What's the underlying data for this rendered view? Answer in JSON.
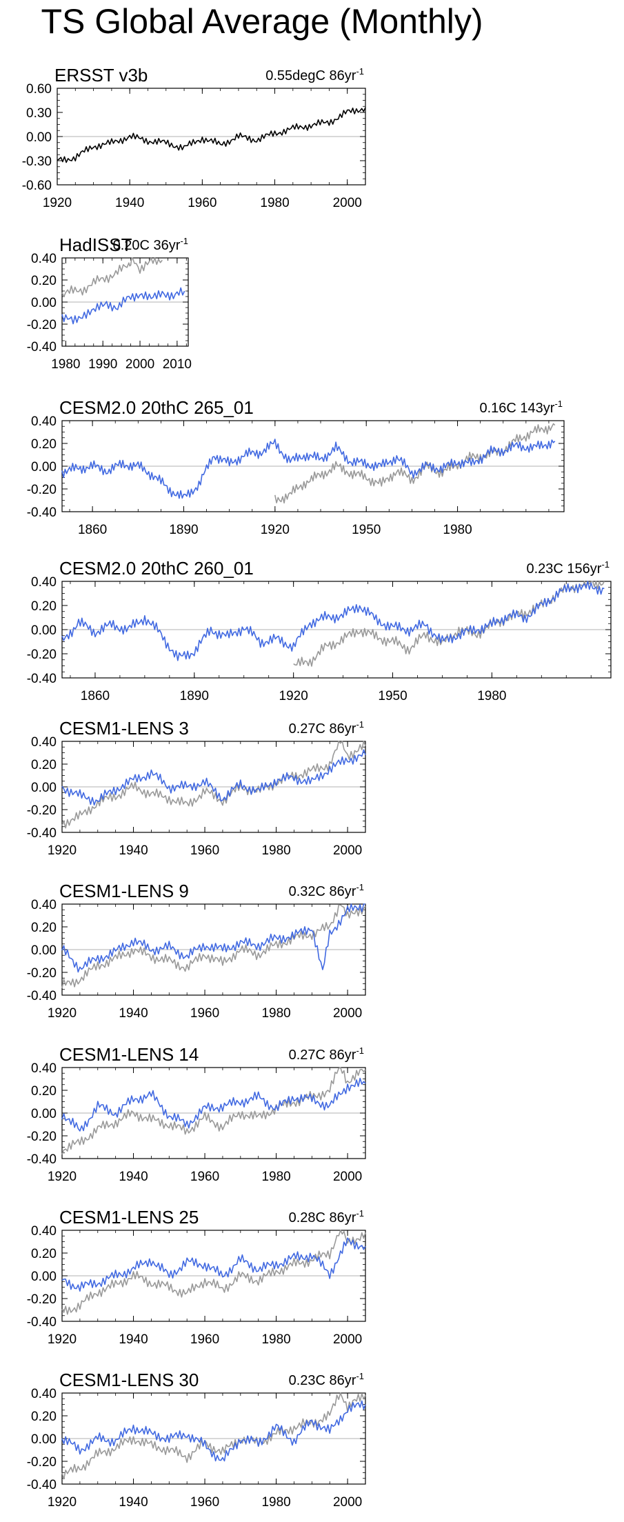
{
  "page_title": "TS Global Average (Monthly)",
  "colors": {
    "observed": "#000000",
    "reference": "#999999",
    "model": "#4169E1",
    "zero_line": "#b0b0b0"
  },
  "chart_data": [
    {
      "type": "line",
      "title": "ERSST v3b",
      "trend": "0.55degC 86yr",
      "trend_sup": "-1",
      "x_ticks": [
        1920,
        1940,
        1960,
        1980,
        2000
      ],
      "y_ticks": [
        "0.60",
        "0.30",
        "0.00",
        "-0.30",
        "-0.60"
      ],
      "xlim": [
        1920,
        2005
      ],
      "ylim": [
        -0.6,
        0.6
      ],
      "series": [
        {
          "color": "#000000",
          "x": [
            1920,
            1925,
            1930,
            1935,
            1940,
            1945,
            1950,
            1955,
            1960,
            1965,
            1970,
            1975,
            1980,
            1985,
            1990,
            1995,
            2000,
            2005
          ],
          "y": [
            -0.3,
            -0.26,
            -0.12,
            -0.08,
            0.0,
            -0.05,
            -0.08,
            -0.14,
            -0.02,
            -0.1,
            0.0,
            -0.04,
            0.04,
            0.1,
            0.14,
            0.18,
            0.3,
            0.36
          ]
        }
      ]
    },
    {
      "type": "line",
      "title": "HadISST",
      "trend": "0.20C 36yr",
      "trend_sup": "-1",
      "x_ticks": [
        1980,
        1990,
        2000,
        2010
      ],
      "y_ticks": [
        "0.40",
        "0.20",
        "0.00",
        "-0.20",
        "-0.40"
      ],
      "xlim": [
        1979,
        2013
      ],
      "ylim": [
        -0.4,
        0.4
      ],
      "series": [
        {
          "color": "#999999",
          "x": [
            1979,
            1982,
            1985,
            1988,
            1991,
            1994,
            1997,
            1998,
            2000,
            2003,
            2006
          ],
          "y": [
            0.06,
            0.1,
            0.12,
            0.18,
            0.22,
            0.28,
            0.32,
            0.42,
            0.3,
            0.36,
            0.38
          ]
        },
        {
          "color": "#4169E1",
          "x": [
            1979,
            1982,
            1985,
            1988,
            1991,
            1994,
            1997,
            2000,
            2003,
            2006,
            2009,
            2012
          ],
          "y": [
            -0.14,
            -0.18,
            -0.1,
            -0.08,
            0.0,
            -0.06,
            0.04,
            0.08,
            0.02,
            0.1,
            0.04,
            0.1
          ]
        }
      ]
    },
    {
      "type": "line",
      "title": "CESM2.0 20thC 265_01",
      "trend": "0.16C 143yr",
      "trend_sup": "-1",
      "x_ticks": [
        1860,
        1890,
        1920,
        1950,
        1980
      ],
      "y_ticks": [
        "0.40",
        "0.20",
        "0.00",
        "-0.20",
        "-0.40"
      ],
      "xlim": [
        1850,
        2015
      ],
      "ylim": [
        -0.4,
        0.4
      ],
      "series": [
        {
          "color": "#999999",
          "x": [
            1920,
            1925,
            1930,
            1935,
            1940,
            1945,
            1950,
            1955,
            1960,
            1965,
            1970,
            1975,
            1980,
            1985,
            1990,
            1995,
            2000,
            2005,
            2012
          ],
          "y": [
            -0.3,
            -0.25,
            -0.14,
            -0.08,
            0.0,
            -0.06,
            -0.1,
            -0.16,
            -0.04,
            -0.12,
            0.0,
            -0.06,
            0.02,
            0.08,
            0.1,
            0.14,
            0.24,
            0.3,
            0.36
          ]
        },
        {
          "color": "#4169E1",
          "x": [
            1850,
            1855,
            1860,
            1865,
            1870,
            1875,
            1880,
            1885,
            1890,
            1895,
            1900,
            1905,
            1910,
            1915,
            1920,
            1925,
            1930,
            1935,
            1940,
            1945,
            1950,
            1955,
            1960,
            1965,
            1970,
            1975,
            1980,
            1985,
            1990,
            1995,
            2000,
            2005,
            2012
          ],
          "y": [
            -0.05,
            -0.02,
            0.0,
            -0.04,
            0.02,
            0.0,
            -0.08,
            -0.2,
            -0.28,
            -0.16,
            0.1,
            0.02,
            0.1,
            0.12,
            0.2,
            0.04,
            0.1,
            0.06,
            0.16,
            0.04,
            0.02,
            0.0,
            0.08,
            -0.06,
            0.0,
            -0.02,
            0.04,
            0.02,
            0.12,
            0.14,
            0.18,
            0.16,
            0.22
          ]
        }
      ]
    },
    {
      "type": "line",
      "title": "CESM2.0 20thC 260_01",
      "trend": "0.23C 156yr",
      "trend_sup": "-1",
      "x_ticks": [
        1860,
        1890,
        1920,
        1950,
        1980
      ],
      "y_ticks": [
        "0.40",
        "0.20",
        "0.00",
        "-0.20",
        "-0.40"
      ],
      "xlim": [
        1850,
        2016
      ],
      "ylim": [
        -0.4,
        0.4
      ],
      "series": [
        {
          "color": "#999999",
          "x": [
            1920,
            1925,
            1930,
            1935,
            1940,
            1945,
            1950,
            1955,
            1960,
            1965,
            1970,
            1975,
            1980,
            1985,
            1990,
            1995,
            2000,
            2005,
            2014
          ],
          "y": [
            -0.3,
            -0.26,
            -0.14,
            -0.08,
            0.0,
            -0.06,
            -0.1,
            -0.16,
            -0.04,
            -0.12,
            0.0,
            -0.04,
            0.04,
            0.1,
            0.14,
            0.2,
            0.3,
            0.36,
            0.4
          ]
        },
        {
          "color": "#4169E1",
          "x": [
            1850,
            1855,
            1860,
            1865,
            1870,
            1875,
            1880,
            1885,
            1890,
            1895,
            1900,
            1905,
            1910,
            1915,
            1920,
            1925,
            1930,
            1935,
            1940,
            1945,
            1950,
            1955,
            1960,
            1965,
            1970,
            1975,
            1980,
            1985,
            1990,
            1995,
            2000,
            2005,
            2014
          ],
          "y": [
            -0.1,
            0.06,
            -0.02,
            0.04,
            0.0,
            0.1,
            -0.04,
            -0.24,
            -0.18,
            0.0,
            -0.06,
            0.02,
            -0.1,
            -0.08,
            -0.14,
            0.06,
            0.1,
            0.12,
            0.2,
            0.08,
            0.02,
            0.0,
            0.04,
            -0.1,
            -0.04,
            0.0,
            0.04,
            0.12,
            0.1,
            0.2,
            0.3,
            0.36,
            0.34
          ]
        }
      ]
    },
    {
      "type": "line",
      "title": "CESM1-LENS 3",
      "trend": "0.27C 86yr",
      "trend_sup": "-1",
      "x_ticks": [
        1920,
        1940,
        1960,
        1980,
        2000
      ],
      "y_ticks": [
        "0.40",
        "0.20",
        "0.00",
        "-0.20",
        "-0.40"
      ],
      "xlim": [
        1920,
        2005
      ],
      "ylim": [
        -0.4,
        0.4
      ],
      "series": [
        {
          "color": "#999999",
          "x": [
            1920,
            1925,
            1930,
            1935,
            1940,
            1945,
            1950,
            1955,
            1960,
            1965,
            1970,
            1975,
            1980,
            1985,
            1990,
            1995,
            1998,
            2000,
            2005
          ],
          "y": [
            -0.32,
            -0.26,
            -0.14,
            -0.08,
            0.0,
            -0.06,
            -0.1,
            -0.16,
            -0.04,
            -0.12,
            0.0,
            -0.04,
            0.04,
            0.1,
            0.14,
            0.2,
            0.4,
            0.28,
            0.36
          ]
        },
        {
          "color": "#4169E1",
          "x": [
            1920,
            1925,
            1930,
            1935,
            1940,
            1945,
            1950,
            1955,
            1960,
            1965,
            1970,
            1975,
            1980,
            1985,
            1990,
            1995,
            2000,
            2005
          ],
          "y": [
            0.0,
            -0.08,
            -0.12,
            -0.02,
            0.06,
            0.12,
            0.0,
            0.0,
            0.04,
            -0.1,
            0.02,
            -0.04,
            0.06,
            0.08,
            0.04,
            0.16,
            0.24,
            0.28
          ]
        }
      ]
    },
    {
      "type": "line",
      "title": "CESM1-LENS 9",
      "trend": "0.32C 86yr",
      "trend_sup": "-1",
      "x_ticks": [
        1920,
        1940,
        1960,
        1980,
        2000
      ],
      "y_ticks": [
        "0.40",
        "0.20",
        "0.00",
        "-0.20",
        "-0.40"
      ],
      "xlim": [
        1920,
        2005
      ],
      "ylim": [
        -0.4,
        0.4
      ],
      "series": [
        {
          "color": "#999999",
          "x": [
            1920,
            1925,
            1930,
            1935,
            1940,
            1945,
            1950,
            1955,
            1960,
            1965,
            1970,
            1975,
            1980,
            1985,
            1990,
            1995,
            1998,
            2000,
            2005
          ],
          "y": [
            -0.32,
            -0.26,
            -0.14,
            -0.08,
            0.0,
            -0.06,
            -0.1,
            -0.16,
            -0.04,
            -0.12,
            0.0,
            -0.04,
            0.04,
            0.1,
            0.14,
            0.2,
            0.42,
            0.28,
            0.38
          ]
        },
        {
          "color": "#4169E1",
          "x": [
            1920,
            1925,
            1930,
            1935,
            1940,
            1945,
            1950,
            1955,
            1960,
            1965,
            1970,
            1975,
            1980,
            1985,
            1990,
            1993,
            1995,
            2000,
            2005
          ],
          "y": [
            0.0,
            -0.16,
            -0.08,
            -0.02,
            0.08,
            0.0,
            0.02,
            -0.06,
            0.04,
            0.0,
            0.06,
            0.04,
            0.1,
            0.12,
            0.2,
            -0.2,
            0.14,
            0.34,
            0.4
          ]
        }
      ]
    },
    {
      "type": "line",
      "title": "CESM1-LENS 14",
      "trend": "0.27C 86yr",
      "trend_sup": "-1",
      "x_ticks": [
        1920,
        1940,
        1960,
        1980,
        2000
      ],
      "y_ticks": [
        "0.40",
        "0.20",
        "0.00",
        "-0.20",
        "-0.40"
      ],
      "xlim": [
        1920,
        2005
      ],
      "ylim": [
        -0.4,
        0.4
      ],
      "series": [
        {
          "color": "#999999",
          "x": [
            1920,
            1925,
            1930,
            1935,
            1940,
            1945,
            1950,
            1955,
            1960,
            1965,
            1970,
            1975,
            1980,
            1985,
            1990,
            1995,
            1998,
            2000,
            2005
          ],
          "y": [
            -0.32,
            -0.26,
            -0.14,
            -0.08,
            0.0,
            -0.06,
            -0.1,
            -0.16,
            -0.04,
            -0.12,
            0.0,
            -0.04,
            0.04,
            0.1,
            0.14,
            0.2,
            0.42,
            0.28,
            0.38
          ]
        },
        {
          "color": "#4169E1",
          "x": [
            1920,
            1925,
            1930,
            1935,
            1940,
            1945,
            1950,
            1955,
            1960,
            1965,
            1970,
            1975,
            1980,
            1985,
            1990,
            1995,
            2000,
            2005
          ],
          "y": [
            0.0,
            -0.16,
            0.06,
            0.0,
            0.12,
            0.16,
            -0.02,
            -0.1,
            0.04,
            0.06,
            0.1,
            0.14,
            0.04,
            0.14,
            0.12,
            0.06,
            0.24,
            0.26
          ]
        }
      ]
    },
    {
      "type": "line",
      "title": "CESM1-LENS 25",
      "trend": "0.28C 86yr",
      "trend_sup": "-1",
      "x_ticks": [
        1920,
        1940,
        1960,
        1980,
        2000
      ],
      "y_ticks": [
        "0.40",
        "0.20",
        "0.00",
        "-0.20",
        "-0.40"
      ],
      "xlim": [
        1920,
        2005
      ],
      "ylim": [
        -0.4,
        0.4
      ],
      "series": [
        {
          "color": "#999999",
          "x": [
            1920,
            1925,
            1930,
            1935,
            1940,
            1945,
            1950,
            1955,
            1960,
            1965,
            1970,
            1975,
            1980,
            1985,
            1990,
            1995,
            1998,
            2000,
            2005
          ],
          "y": [
            -0.32,
            -0.26,
            -0.14,
            -0.08,
            0.0,
            -0.06,
            -0.1,
            -0.16,
            -0.04,
            -0.12,
            0.0,
            -0.04,
            0.04,
            0.1,
            0.14,
            0.2,
            0.42,
            0.28,
            0.38
          ]
        },
        {
          "color": "#4169E1",
          "x": [
            1920,
            1925,
            1930,
            1935,
            1940,
            1945,
            1950,
            1955,
            1960,
            1965,
            1970,
            1975,
            1980,
            1985,
            1990,
            1995,
            2000,
            2005
          ],
          "y": [
            -0.04,
            -0.1,
            -0.06,
            0.0,
            0.06,
            0.14,
            0.0,
            0.12,
            0.1,
            0.0,
            0.14,
            0.06,
            0.1,
            0.16,
            0.18,
            0.02,
            0.3,
            0.26
          ]
        }
      ]
    },
    {
      "type": "line",
      "title": "CESM1-LENS 30",
      "trend": "0.23C 86yr",
      "trend_sup": "-1",
      "x_ticks": [
        1920,
        1940,
        1960,
        1980,
        2000
      ],
      "y_ticks": [
        "0.40",
        "0.20",
        "0.00",
        "-0.20",
        "-0.40"
      ],
      "xlim": [
        1920,
        2005
      ],
      "ylim": [
        -0.4,
        0.4
      ],
      "series": [
        {
          "color": "#999999",
          "x": [
            1920,
            1925,
            1930,
            1935,
            1940,
            1945,
            1950,
            1955,
            1960,
            1965,
            1970,
            1975,
            1980,
            1985,
            1990,
            1995,
            1998,
            2000,
            2005
          ],
          "y": [
            -0.32,
            -0.26,
            -0.14,
            -0.08,
            0.0,
            -0.06,
            -0.1,
            -0.16,
            -0.04,
            -0.12,
            0.0,
            -0.04,
            0.04,
            0.1,
            0.14,
            0.2,
            0.42,
            0.28,
            0.38
          ]
        },
        {
          "color": "#4169E1",
          "x": [
            1920,
            1925,
            1930,
            1935,
            1940,
            1945,
            1950,
            1955,
            1960,
            1965,
            1970,
            1975,
            1980,
            1985,
            1990,
            1995,
            2000,
            2005
          ],
          "y": [
            0.0,
            -0.1,
            0.0,
            -0.02,
            0.1,
            0.04,
            0.0,
            0.04,
            -0.06,
            -0.2,
            0.0,
            -0.04,
            0.1,
            -0.02,
            0.16,
            0.06,
            0.26,
            0.3
          ]
        }
      ]
    }
  ]
}
